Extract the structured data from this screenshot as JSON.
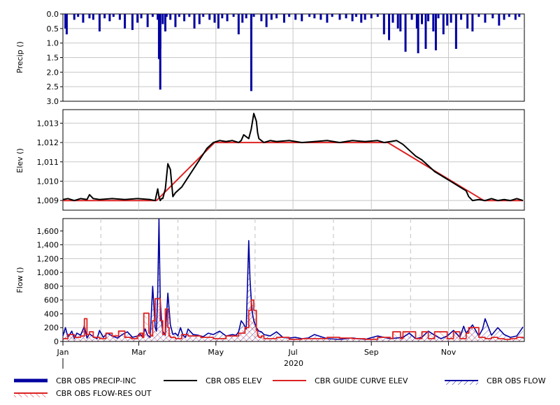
{
  "chart_data": [
    {
      "type": "bar",
      "panel": "precip",
      "ylabel": "Precip ()",
      "ylim": [
        3.0,
        0.0
      ],
      "y_inverted": true,
      "yticks": [
        "0.0",
        "0.5",
        "1.0",
        "1.5",
        "2.0",
        "2.5",
        "3.0"
      ],
      "ytick_values": [
        0,
        0.5,
        1.0,
        1.5,
        2.0,
        2.5,
        3.0
      ],
      "grid": true,
      "series": [
        {
          "name": "CBR OBS PRECIP-INC",
          "color": "#0000a0",
          "day_of_year": [
            3,
            4,
            10,
            13,
            17,
            22,
            25,
            30,
            34,
            38,
            41,
            46,
            50,
            56,
            60,
            63,
            68,
            72,
            76,
            78,
            80,
            82,
            83,
            86,
            90,
            93,
            97,
            101,
            105,
            109,
            112,
            117,
            121,
            124,
            127,
            131,
            136,
            140,
            143,
            146,
            150,
            152,
            158,
            162,
            166,
            170,
            176,
            180,
            185,
            190,
            196,
            200,
            205,
            210,
            214,
            220,
            225,
            230,
            233,
            237,
            240,
            245,
            250,
            255,
            259,
            262,
            266,
            268,
            272,
            277,
            281,
            285,
            288,
            290,
            294,
            298,
            302,
            305,
            308,
            312,
            316,
            321,
            325,
            330,
            335,
            341,
            346,
            350,
            354,
            359,
            362
          ],
          "values": [
            0.5,
            0.7,
            0.2,
            0.1,
            0.3,
            0.15,
            0.2,
            0.6,
            0.15,
            0.25,
            0.1,
            0.2,
            0.5,
            0.55,
            0.3,
            0.15,
            0.45,
            0.1,
            0.2,
            1.2,
            0.35,
            0.6,
            0.1,
            0.2,
            0.45,
            0.1,
            0.25,
            0.1,
            0.5,
            0.35,
            0.1,
            0.2,
            0.3,
            0.5,
            0.15,
            0.25,
            0.1,
            0.7,
            0.3,
            0.15,
            0.5,
            0.1,
            0.25,
            0.45,
            0.2,
            0.15,
            0.3,
            0.1,
            0.2,
            0.25,
            0.1,
            0.15,
            0.2,
            0.3,
            0.1,
            0.2,
            0.15,
            0.25,
            0.1,
            0.3,
            0.2,
            0.15,
            0.1,
            0.7,
            0.9,
            0.3,
            0.5,
            0.6,
            1.3,
            0.2,
            0.5,
            0.35,
            1.2,
            0.25,
            0.6,
            0.15,
            0.7,
            0.4,
            0.3,
            1.2,
            0.2,
            0.5,
            0.6,
            0.1,
            0.3,
            0.15,
            0.4,
            0.2,
            0.1,
            0.2,
            0.1
          ]
        }
      ],
      "peaks": [
        {
          "day_of_year": 77,
          "value": 1.55
        },
        {
          "day_of_year": 78,
          "value": 2.6
        },
        {
          "day_of_year": 150,
          "value": 2.65
        },
        {
          "day_of_year": 282,
          "value": 1.35
        },
        {
          "day_of_year": 296,
          "value": 1.25
        }
      ]
    },
    {
      "type": "line",
      "panel": "elev",
      "ylabel": "Elev ()",
      "ylim": [
        1008.5,
        1013.7
      ],
      "yticks": [
        "1,009",
        "1,010",
        "1,011",
        "1,012",
        "1,013"
      ],
      "ytick_values": [
        1009,
        1010,
        1011,
        1012,
        1013
      ],
      "grid": true,
      "series": [
        {
          "name": "CBR OBS ELEV",
          "color": "#000000",
          "day_of_year": [
            1,
            5,
            10,
            15,
            20,
            22,
            25,
            30,
            40,
            50,
            60,
            70,
            74,
            76,
            77,
            78,
            79,
            80,
            82,
            84,
            86,
            88,
            90,
            95,
            100,
            110,
            115,
            120,
            125,
            130,
            135,
            140,
            142,
            144,
            146,
            148,
            150,
            152,
            154,
            155,
            156,
            158,
            160,
            165,
            170,
            180,
            190,
            200,
            210,
            220,
            230,
            240,
            250,
            255,
            260,
            265,
            270,
            275,
            280,
            285,
            290,
            295,
            300,
            305,
            310,
            315,
            320,
            322,
            325,
            330,
            335,
            340,
            345,
            350,
            355,
            360,
            365
          ],
          "values": [
            1009.05,
            1009.1,
            1009.0,
            1009.1,
            1009.05,
            1009.3,
            1009.1,
            1009.05,
            1009.1,
            1009.05,
            1009.1,
            1009.05,
            1009.0,
            1009.6,
            1009.2,
            1009.0,
            1009.1,
            1009.1,
            1009.6,
            1010.9,
            1010.6,
            1009.2,
            1009.4,
            1009.7,
            1010.2,
            1011.2,
            1011.7,
            1012.0,
            1012.1,
            1012.05,
            1012.1,
            1012.0,
            1012.1,
            1012.4,
            1012.3,
            1012.2,
            1012.7,
            1013.5,
            1013.1,
            1012.5,
            1012.2,
            1012.1,
            1012.0,
            1012.1,
            1012.05,
            1012.1,
            1012.0,
            1012.05,
            1012.1,
            1012.0,
            1012.1,
            1012.05,
            1012.1,
            1012.0,
            1012.05,
            1012.1,
            1011.9,
            1011.6,
            1011.3,
            1011.1,
            1010.8,
            1010.5,
            1010.3,
            1010.1,
            1009.9,
            1009.7,
            1009.5,
            1009.2,
            1009.0,
            1009.05,
            1009.0,
            1009.1,
            1009.0,
            1009.05,
            1009.0,
            1009.1,
            1009.0
          ]
        },
        {
          "name": "CBR GUIDE CURVE ELEV",
          "color": "#dd2222",
          "day_of_year": [
            1,
            75,
            121,
            258,
            334,
            365
          ],
          "values": [
            1009,
            1009,
            1012,
            1012,
            1009,
            1009
          ]
        }
      ]
    },
    {
      "type": "line",
      "panel": "flow",
      "ylabel": "Flow ()",
      "ylim": [
        0,
        1780
      ],
      "yticks": [
        "0",
        "200",
        "400",
        "600",
        "800",
        "1,000",
        "1,200",
        "1,400",
        "1,600"
      ],
      "ytick_values": [
        0,
        200,
        400,
        600,
        800,
        1000,
        1200,
        1400,
        1600
      ],
      "xticks": [
        "Jan",
        "Mar",
        "May",
        "Jul",
        "Sep",
        "Nov"
      ],
      "xtick_day_of_year": [
        1,
        61,
        122,
        183,
        245,
        306
      ],
      "xlabel_year": "2020",
      "grid": true,
      "series": [
        {
          "name": "CBR OBS FLOW",
          "color": "#0000a0",
          "day_of_year": [
            1,
            3,
            5,
            8,
            10,
            12,
            15,
            18,
            20,
            22,
            25,
            28,
            30,
            33,
            36,
            40,
            44,
            48,
            52,
            56,
            60,
            62,
            64,
            66,
            68,
            70,
            72,
            74,
            75,
            76,
            77,
            78,
            79,
            80,
            82,
            84,
            86,
            88,
            90,
            92,
            94,
            96,
            98,
            100,
            104,
            108,
            112,
            116,
            120,
            125,
            130,
            135,
            138,
            140,
            142,
            144,
            146,
            148,
            149,
            150,
            151,
            152,
            154,
            156,
            158,
            160,
            165,
            170,
            175,
            180,
            185,
            190,
            195,
            200,
            210,
            220,
            230,
            240,
            250,
            260,
            270,
            275,
            280,
            285,
            290,
            295,
            300,
            305,
            310,
            315,
            318,
            320,
            325,
            330,
            333,
            335,
            340,
            345,
            350,
            355,
            360,
            365
          ],
          "values": [
            80,
            200,
            60,
            150,
            40,
            120,
            90,
            220,
            50,
            110,
            70,
            40,
            160,
            60,
            120,
            80,
            50,
            100,
            140,
            60,
            80,
            120,
            60,
            180,
            90,
            60,
            800,
            200,
            150,
            700,
            1770,
            600,
            300,
            150,
            90,
            700,
            240,
            100,
            120,
            80,
            200,
            90,
            60,
            180,
            100,
            90,
            70,
            120,
            100,
            150,
            80,
            100,
            90,
            140,
            300,
            250,
            180,
            1460,
            900,
            600,
            400,
            300,
            200,
            150,
            140,
            100,
            80,
            140,
            60,
            50,
            60,
            40,
            50,
            100,
            40,
            30,
            50,
            30,
            80,
            40,
            60,
            120,
            40,
            60,
            150,
            90,
            40,
            80,
            160,
            60,
            220,
            120,
            240,
            80,
            180,
            330,
            90,
            200,
            100,
            60,
            80,
            210
          ]
        },
        {
          "name": "CBR OBS FLOW-RES OUT",
          "color": "#dd2222",
          "day_of_year": [
            1,
            5,
            10,
            15,
            18,
            20,
            22,
            25,
            30,
            35,
            40,
            45,
            50,
            55,
            60,
            62,
            64,
            65,
            67,
            69,
            70,
            72,
            74,
            76,
            77,
            78,
            79,
            80,
            81,
            82,
            83,
            84,
            85,
            86,
            88,
            90,
            95,
            100,
            110,
            120,
            130,
            140,
            145,
            148,
            150,
            151,
            152,
            153,
            154,
            155,
            156,
            158,
            160,
            170,
            180,
            190,
            200,
            210,
            220,
            230,
            240,
            250,
            260,
            262,
            265,
            268,
            270,
            275,
            280,
            285,
            290,
            295,
            300,
            305,
            310,
            315,
            320,
            322,
            325,
            330,
            335,
            340,
            345,
            350,
            355,
            360,
            365
          ],
          "values": [
            40,
            100,
            60,
            80,
            330,
            100,
            140,
            60,
            40,
            120,
            80,
            150,
            60,
            40,
            80,
            120,
            60,
            410,
            410,
            120,
            80,
            300,
            620,
            620,
            620,
            300,
            300,
            100,
            100,
            470,
            470,
            200,
            80,
            60,
            60,
            40,
            100,
            80,
            60,
            40,
            80,
            120,
            200,
            450,
            600,
            600,
            450,
            450,
            160,
            80,
            60,
            80,
            40,
            60,
            30,
            40,
            40,
            60,
            50,
            40,
            30,
            60,
            40,
            140,
            140,
            40,
            140,
            140,
            40,
            140,
            40,
            140,
            140,
            40,
            140,
            40,
            120,
            200,
            200,
            60,
            40,
            60,
            40,
            30,
            40,
            60,
            40
          ]
        }
      ]
    }
  ],
  "legend": {
    "items": [
      {
        "label": "CBR OBS PRECIP-INC",
        "color": "#0000a0"
      },
      {
        "label": "CBR OBS ELEV",
        "color": "#000000"
      },
      {
        "label": "CBR GUIDE CURVE ELEV",
        "color": "#dd2222"
      },
      {
        "label": "CBR OBS FLOW",
        "color": "#0000a0"
      },
      {
        "label": "CBR OBS FLOW-RES OUT",
        "color": "#dd2222"
      }
    ]
  },
  "colors": {
    "grid": "#c8c8c8",
    "dashed_grid": "#c0c0c0",
    "frame": "#000000",
    "precip": "#0000a0",
    "flow_obs": "#0000a0",
    "guide": "#dd2222"
  }
}
